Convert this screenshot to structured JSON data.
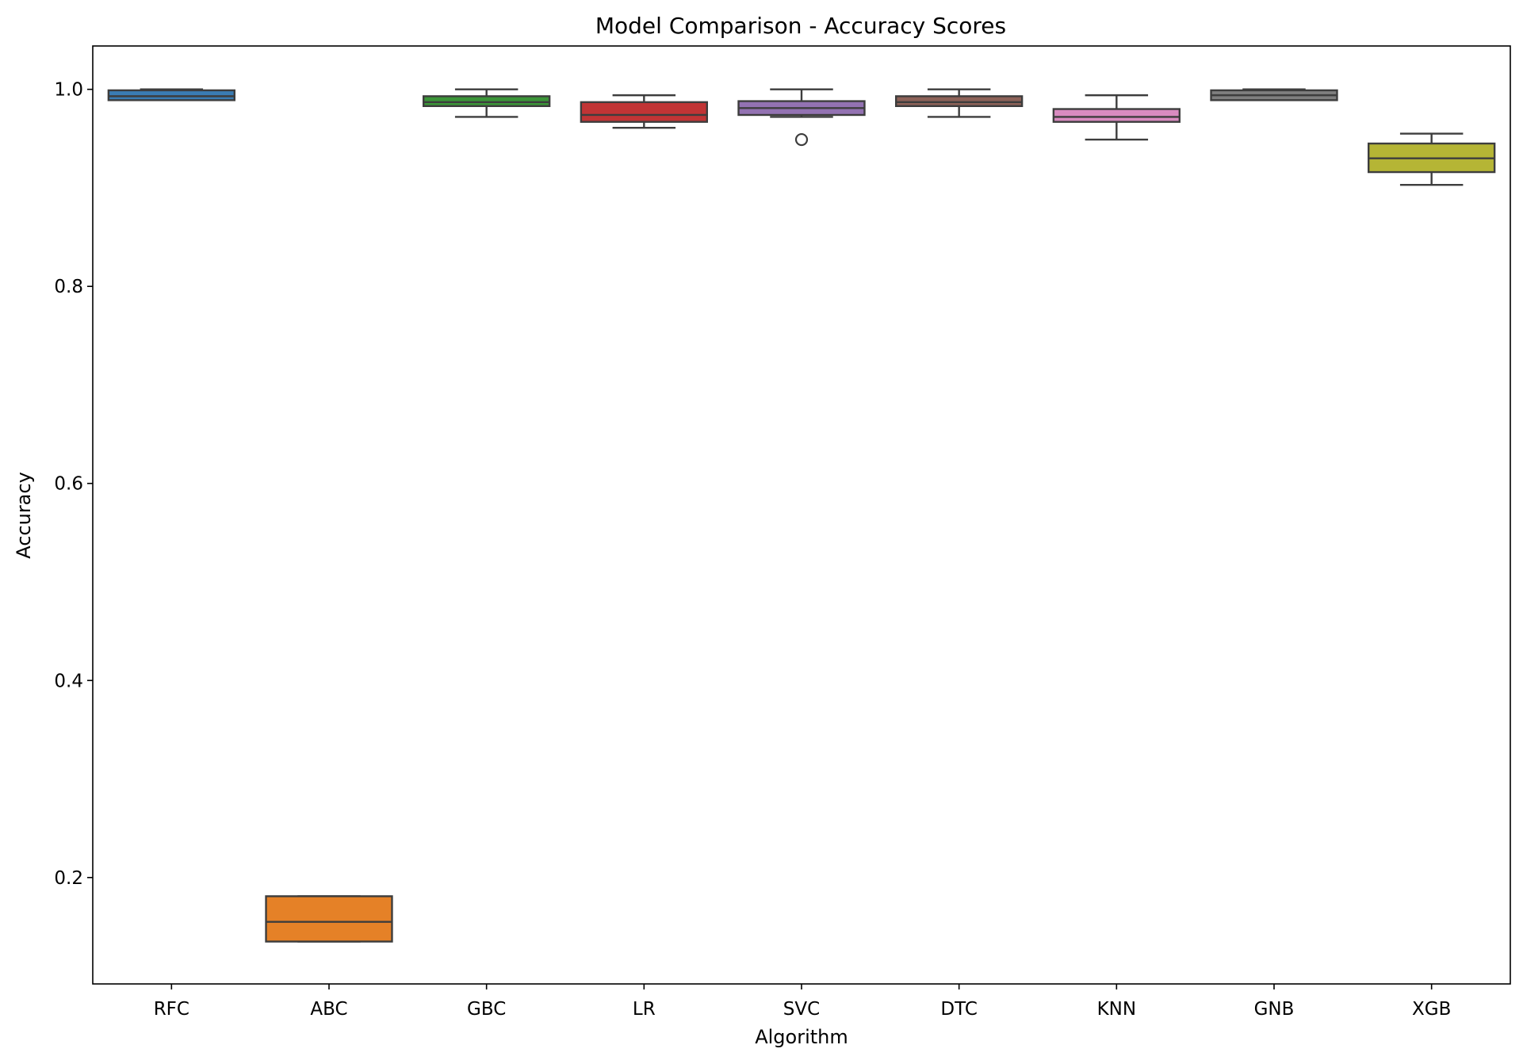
{
  "chart_data": {
    "type": "box",
    "title": "Model Comparison - Accuracy Scores",
    "xlabel": "Algorithm",
    "ylabel": "Accuracy",
    "ylim": [
      0.092,
      1.044
    ],
    "yticks": [
      0.2,
      0.4,
      0.6,
      0.8,
      1.0
    ],
    "ytick_labels": [
      "0.2",
      "0.4",
      "0.6",
      "0.8",
      "1.0"
    ],
    "grid": false,
    "legend": "none",
    "categories": [
      "RFC",
      "ABC",
      "GBC",
      "LR",
      "SVC",
      "DTC",
      "KNN",
      "GNB",
      "XGB"
    ],
    "boxes": [
      {
        "category": "RFC",
        "color": "#3a7cb3",
        "whislo": 0.989,
        "q1": 0.989,
        "med": 0.993,
        "q3": 0.999,
        "whishi": 1.0,
        "fliers": []
      },
      {
        "category": "ABC",
        "color": "#e58127",
        "whislo": 0.135,
        "q1": 0.135,
        "med": 0.155,
        "q3": 0.181,
        "whishi": 0.181,
        "fliers": []
      },
      {
        "category": "GBC",
        "color": "#3b9538",
        "whislo": 0.972,
        "q1": 0.983,
        "med": 0.987,
        "q3": 0.993,
        "whishi": 1.0,
        "fliers": []
      },
      {
        "category": "LR",
        "color": "#c13435",
        "whislo": 0.961,
        "q1": 0.967,
        "med": 0.974,
        "q3": 0.987,
        "whishi": 0.994,
        "fliers": []
      },
      {
        "category": "SVC",
        "color": "#9372b2",
        "whislo": 0.972,
        "q1": 0.974,
        "med": 0.981,
        "q3": 0.988,
        "whishi": 1.0,
        "fliers": [
          0.949
        ]
      },
      {
        "category": "DTC",
        "color": "#8d6258",
        "whislo": 0.972,
        "q1": 0.983,
        "med": 0.987,
        "q3": 0.993,
        "whishi": 1.0,
        "fliers": []
      },
      {
        "category": "KNN",
        "color": "#d98bc0",
        "whislo": 0.949,
        "q1": 0.967,
        "med": 0.972,
        "q3": 0.98,
        "whishi": 0.994,
        "fliers": []
      },
      {
        "category": "GNB",
        "color": "#7f7f7f",
        "whislo": 0.989,
        "q1": 0.989,
        "med": 0.994,
        "q3": 0.999,
        "whishi": 1.0,
        "fliers": []
      },
      {
        "category": "XGB",
        "color": "#b5b535",
        "whislo": 0.903,
        "q1": 0.916,
        "med": 0.93,
        "q3": 0.945,
        "whishi": 0.955,
        "fliers": []
      }
    ]
  }
}
